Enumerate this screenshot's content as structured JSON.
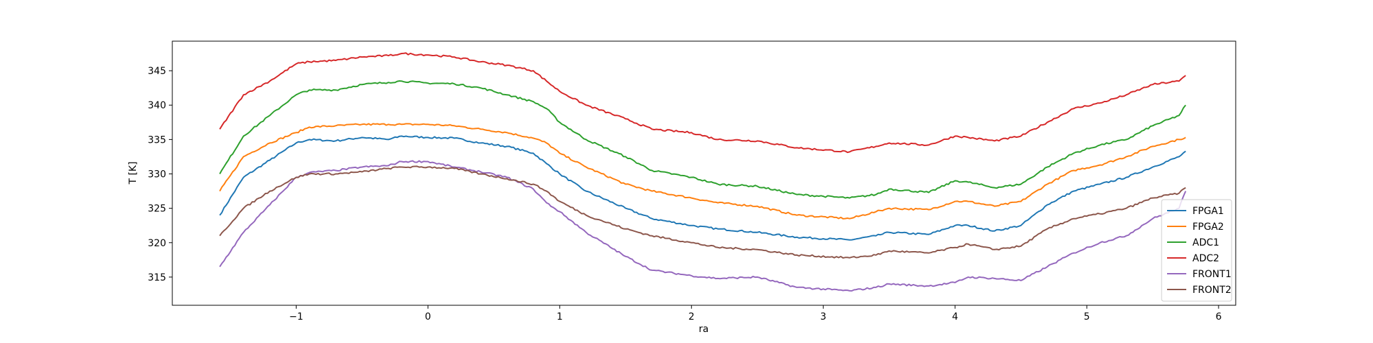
{
  "chart_data": {
    "type": "line",
    "title": "",
    "xlabel": "ra",
    "ylabel": "T [K]",
    "xlim": [
      -1.94,
      6.13
    ],
    "ylim": [
      310.9,
      349.3
    ],
    "xticks": [
      -1,
      0,
      1,
      2,
      3,
      4,
      5,
      6
    ],
    "yticks": [
      315,
      320,
      325,
      330,
      335,
      340,
      345
    ],
    "grid": false,
    "legend_position": "lower-right",
    "x": [
      -1.58,
      -1.4,
      -1.2,
      -1,
      -0.9,
      -0.7,
      -0.5,
      -0.3,
      -0.2,
      0,
      0.2,
      0.4,
      0.6,
      0.8,
      0.9,
      1.0,
      1.2,
      1.5,
      1.7,
      2.0,
      2.2,
      2.5,
      2.8,
      3.2,
      3.4,
      3.5,
      3.8,
      4.0,
      4.1,
      4.3,
      4.5,
      4.7,
      4.9,
      5.1,
      5.3,
      5.5,
      5.7,
      5.75
    ],
    "series": [
      {
        "name": "FPGA1",
        "color": "#1f77b4",
        "values": [
          324,
          329.5,
          332,
          334.5,
          335,
          334.8,
          335.3,
          335,
          335.5,
          335.3,
          335.2,
          334.5,
          334,
          333,
          331.5,
          330,
          327.5,
          325,
          323.5,
          322.5,
          322,
          321.5,
          320.8,
          320.4,
          321,
          321.5,
          321.2,
          322.5,
          322.5,
          321.7,
          322.5,
          325.5,
          327.5,
          328.5,
          329.5,
          331,
          332.5,
          333.3
        ]
      },
      {
        "name": "FPGA2",
        "color": "#ff7f0e",
        "values": [
          327.5,
          332.5,
          334.5,
          336,
          336.8,
          337,
          337.2,
          337.2,
          337.2,
          337.2,
          337,
          336.5,
          336,
          335.2,
          334.5,
          333,
          331,
          328.5,
          327.5,
          326.5,
          325.8,
          325.3,
          324,
          323.5,
          324.5,
          325,
          324.8,
          326,
          326,
          325.3,
          326,
          328.5,
          330.5,
          331.3,
          332.5,
          334,
          335,
          335.3
        ]
      },
      {
        "name": "ADC1",
        "color": "#2ca02c",
        "values": [
          330,
          335.5,
          338.5,
          341.5,
          342.2,
          342.2,
          343,
          343.3,
          343.5,
          343.2,
          343.1,
          342.5,
          341.5,
          340.5,
          339.5,
          337.5,
          335,
          332.5,
          330.5,
          329.5,
          328.5,
          328.2,
          327,
          326.5,
          327,
          327.8,
          327.3,
          329,
          328.8,
          328,
          328.5,
          331,
          333,
          334.2,
          335,
          337,
          338.5,
          340
        ]
      },
      {
        "name": "ADC2",
        "color": "#d62728",
        "values": [
          336.5,
          341.5,
          343.5,
          346,
          346.3,
          346.5,
          347,
          347.2,
          347.5,
          347.3,
          347,
          346.3,
          345.8,
          345,
          343.5,
          342,
          340,
          338,
          336.5,
          336,
          335,
          334.8,
          333.8,
          333.2,
          334,
          334.5,
          334.2,
          335.5,
          335.3,
          334.8,
          335.5,
          337.5,
          339.5,
          340.3,
          341.5,
          343,
          343.5,
          344.3
        ]
      },
      {
        "name": "FRONT1",
        "color": "#9467bd",
        "values": [
          316.5,
          321.5,
          325.5,
          329.5,
          330.2,
          330.5,
          331,
          331.2,
          331.8,
          331.8,
          331,
          330.3,
          329.5,
          327.8,
          325.8,
          324.5,
          321.5,
          318,
          316,
          315.2,
          314.8,
          315,
          313.5,
          313,
          313.5,
          314,
          313.7,
          314.2,
          315,
          314.8,
          314.5,
          316.5,
          318.5,
          320,
          321,
          323.5,
          325,
          327.5
        ]
      },
      {
        "name": "FRONT2",
        "color": "#8c564b",
        "values": [
          321,
          325,
          327.5,
          329.5,
          330,
          330,
          330.3,
          330.8,
          331,
          331,
          330.8,
          330,
          329.3,
          328.5,
          327.5,
          326,
          324,
          322,
          321,
          320,
          319.3,
          319,
          318.2,
          317.8,
          318.2,
          318.8,
          318.5,
          319.3,
          319.8,
          319,
          319.5,
          322,
          323.5,
          324.2,
          325,
          326.5,
          327.2,
          328
        ]
      }
    ]
  }
}
